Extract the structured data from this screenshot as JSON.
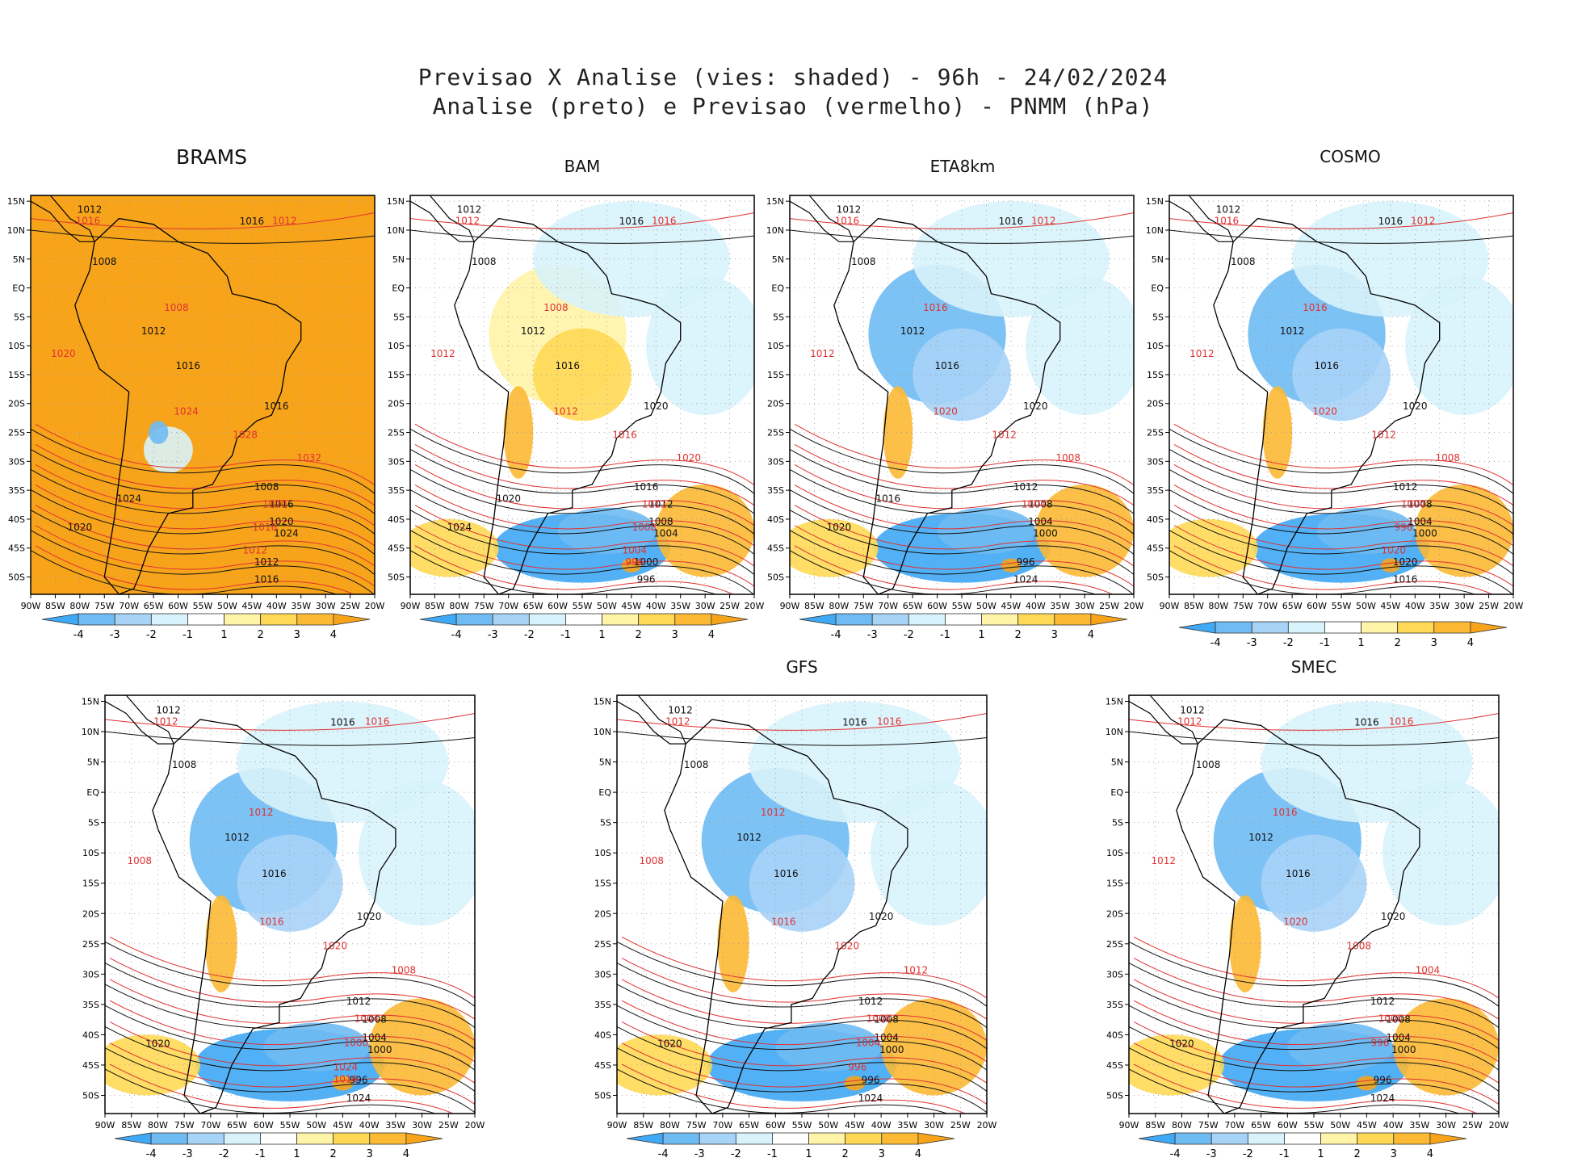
{
  "title": {
    "line1": "Previsao X Analise (vies: shaded) - 96h - 24/02/2024",
    "line2": "Analise (preto) e Previsao (vermelho) - PNMM (hPa)"
  },
  "axes": {
    "lat_labels": [
      "15N",
      "10N",
      "5N",
      "EQ",
      "5S",
      "10S",
      "15S",
      "20S",
      "25S",
      "30S",
      "35S",
      "40S",
      "45S",
      "50S"
    ],
    "lon_labels": [
      "90W",
      "85W",
      "80W",
      "75W",
      "70W",
      "65W",
      "60W",
      "55W",
      "50W",
      "45W",
      "40W",
      "35W",
      "30W",
      "25W",
      "20W"
    ]
  },
  "colorbar": {
    "labels": [
      "-4",
      "-3",
      "-2",
      "-1",
      "1",
      "2",
      "3",
      "4"
    ],
    "colors": [
      "#3fa9f5",
      "#6fbbf3",
      "#a7d3f7",
      "#d8f3fb",
      "#ffffff",
      "#fff4a8",
      "#ffd955",
      "#fcb934",
      "#f8a41a"
    ]
  },
  "colors": {
    "analysis_contour": "#111111",
    "forecast_contour": "#e03131",
    "land_outline": "#000000"
  },
  "panels": [
    {
      "name": "BRAMS",
      "black_labels": [
        "1012",
        "1016",
        "1008",
        "1012",
        "1016",
        "1016",
        "1008",
        "1016",
        "1020",
        "1024",
        "1012",
        "1016",
        "1020",
        "1024"
      ],
      "red_labels": [
        "1016",
        "1012",
        "1020",
        "1008",
        "1024",
        "1028",
        "1032",
        "1020",
        "1016",
        "1012"
      ]
    },
    {
      "name": "BAM",
      "black_labels": [
        "1012",
        "1016",
        "1008",
        "1012",
        "1016",
        "1020",
        "1016",
        "1012",
        "1008",
        "1004",
        "1000",
        "996",
        "1024",
        "1020"
      ],
      "red_labels": [
        "1012",
        "1016",
        "1012",
        "1008",
        "1012",
        "1016",
        "1020",
        "1012",
        "1008",
        "1004",
        "996"
      ]
    },
    {
      "name": "ETA8km",
      "black_labels": [
        "1012",
        "1016",
        "1008",
        "1012",
        "1016",
        "1020",
        "1012",
        "1008",
        "1004",
        "1000",
        "996",
        "1024",
        "1020",
        "1016"
      ],
      "red_labels": [
        "1016",
        "1012",
        "1012",
        "1016",
        "1020",
        "1012",
        "1008",
        "1004"
      ]
    },
    {
      "name": "COSMO",
      "black_labels": [
        "1012",
        "1016",
        "1008",
        "1012",
        "1016",
        "1020",
        "1012",
        "1008",
        "1004",
        "1000",
        "1020",
        "1016"
      ],
      "red_labels": [
        "1016",
        "1012",
        "1012",
        "1016",
        "1020",
        "1012",
        "1008",
        "1004",
        "996",
        "1020"
      ]
    },
    {
      "name": "",
      "black_labels": [
        "1012",
        "1016",
        "1008",
        "1012",
        "1016",
        "1020",
        "1012",
        "1008",
        "1004",
        "1000",
        "996",
        "1024",
        "1020"
      ],
      "red_labels": [
        "1012",
        "1016",
        "1008",
        "1012",
        "1016",
        "1020",
        "1008",
        "1004",
        "1000",
        "1024",
        "1016"
      ]
    },
    {
      "name": "GFS",
      "black_labels": [
        "1012",
        "1016",
        "1008",
        "1012",
        "1016",
        "1020",
        "1012",
        "1008",
        "1004",
        "1000",
        "996",
        "1024",
        "1020"
      ],
      "red_labels": [
        "1012",
        "1016",
        "1008",
        "1012",
        "1016",
        "1020",
        "1012",
        "1008",
        "1004",
        "996"
      ]
    },
    {
      "name": "SMEC",
      "black_labels": [
        "1012",
        "1016",
        "1008",
        "1012",
        "1016",
        "1020",
        "1012",
        "1008",
        "1004",
        "1000",
        "996",
        "1024",
        "1020"
      ],
      "red_labels": [
        "1012",
        "1016",
        "1012",
        "1016",
        "1020",
        "1008",
        "1004",
        "1000",
        "996"
      ]
    }
  ]
}
